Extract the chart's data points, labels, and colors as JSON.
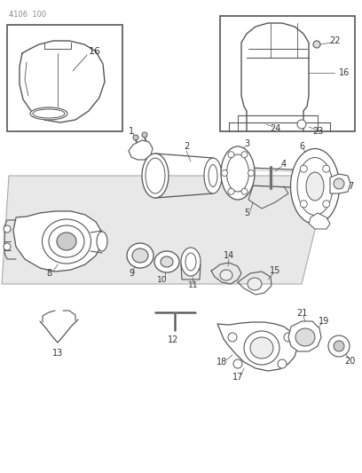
{
  "title": "4106 100",
  "bg": "#ffffff",
  "lc": "#555555",
  "tc": "#333333",
  "fig_w": 4.08,
  "fig_h": 5.33,
  "dpi": 100
}
